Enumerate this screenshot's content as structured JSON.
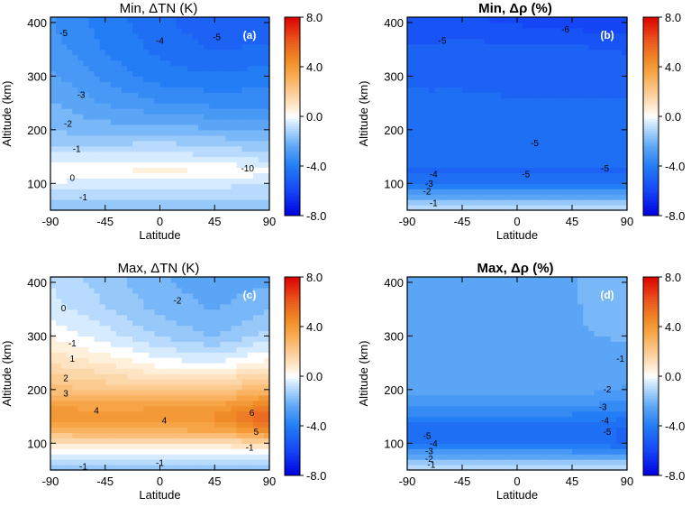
{
  "figure": {
    "colorbar_ticks": [
      "8.0",
      "4.0",
      "0.0",
      "-4.0",
      "-8.0"
    ]
  },
  "chart_data": [
    {
      "type": "heatmap",
      "title": "Min, ΔTN (K)",
      "panel_label": "(a)",
      "xlabel": "Latitude",
      "ylabel": "Altitude (km)",
      "xlim": [
        -90,
        90
      ],
      "ylim": [
        50,
        410
      ],
      "x_ticks": [
        "-90",
        "-45",
        "0",
        "45",
        "90"
      ],
      "y_ticks": [
        "100",
        "200",
        "300",
        "400"
      ],
      "colorbar_range": [
        -8,
        8
      ],
      "grid": false,
      "lat": [
        -90,
        -45,
        0,
        45,
        90
      ],
      "alt": [
        60,
        80,
        100,
        125,
        150,
        175,
        200,
        250,
        300,
        350,
        400
      ],
      "z": [
        [
          -1.5,
          -1.5,
          -1.5,
          -1.5,
          -1.5
        ],
        [
          -1,
          -1,
          -1,
          -1,
          -1
        ],
        [
          -0.3,
          -0.5,
          -0.5,
          -0.6,
          -0.8
        ],
        [
          0.2,
          0.2,
          0.3,
          0.2,
          0
        ],
        [
          -0.6,
          -0.6,
          -0.5,
          -0.7,
          -1
        ],
        [
          -1.3,
          -1.3,
          -1.2,
          -1.4,
          -1.6
        ],
        [
          -1.8,
          -2,
          -2,
          -2.2,
          -2.4
        ],
        [
          -2.2,
          -2.8,
          -3.2,
          -3.4,
          -3.4
        ],
        [
          -2.6,
          -3.4,
          -4,
          -4.2,
          -4
        ],
        [
          -3,
          -3.8,
          -4.4,
          -4.8,
          -4.6
        ],
        [
          -3.2,
          -4,
          -4.6,
          -5.1,
          -5.2
        ]
      ],
      "contour_labels": [
        "-5",
        "-4",
        "-5",
        "-3",
        "-2",
        "-1",
        "0",
        "-1",
        "-10"
      ]
    },
    {
      "type": "heatmap",
      "title": "Min, Δρ (%)",
      "panel_label": "(b)",
      "xlabel": "Latitude",
      "ylabel": "Altitude (km)",
      "xlim": [
        -90,
        90
      ],
      "ylim": [
        50,
        410
      ],
      "x_ticks": [
        "-90",
        "-45",
        "0",
        "45",
        "90"
      ],
      "y_ticks": [
        "100",
        "200",
        "300",
        "400"
      ],
      "colorbar_range": [
        -8,
        8
      ],
      "grid": false,
      "lat": [
        -90,
        -45,
        0,
        45,
        90
      ],
      "alt": [
        60,
        80,
        100,
        125,
        150,
        175,
        200,
        250,
        300,
        350,
        400
      ],
      "z": [
        [
          -1,
          -1,
          -1,
          -1,
          -1
        ],
        [
          -2.8,
          -2.8,
          -2.8,
          -2.8,
          -2.8
        ],
        [
          -4.5,
          -4.5,
          -4.5,
          -4.5,
          -4.5
        ],
        [
          -4.8,
          -4.8,
          -4.8,
          -4.8,
          -4.8
        ],
        [
          -4.6,
          -4.6,
          -4.6,
          -4.6,
          -4.6
        ],
        [
          -4.6,
          -4.6,
          -4.6,
          -4.6,
          -4.6
        ],
        [
          -4.6,
          -4.6,
          -4.6,
          -4.6,
          -4.6
        ],
        [
          -4.7,
          -4.7,
          -4.7,
          -4.7,
          -4.7
        ],
        [
          -4.8,
          -4.8,
          -4.9,
          -5,
          -5
        ],
        [
          -5.2,
          -5,
          -5.1,
          -5.1,
          -5.3
        ],
        [
          -5.6,
          -5.7,
          -5.8,
          -6,
          -6.1
        ]
      ],
      "contour_labels": [
        "-6",
        "-5",
        "-5",
        "-5",
        "-5",
        "-4",
        "-3",
        "-2",
        "-1"
      ]
    },
    {
      "type": "heatmap",
      "title": "Max, ΔTN (K)",
      "panel_label": "(c)",
      "xlabel": "Latitude",
      "ylabel": "Altitude (km)",
      "xlim": [
        -90,
        90
      ],
      "ylim": [
        50,
        410
      ],
      "x_ticks": [
        "-90",
        "-45",
        "0",
        "45",
        "90"
      ],
      "y_ticks": [
        "100",
        "200",
        "300",
        "400"
      ],
      "colorbar_range": [
        -8,
        8
      ],
      "grid": false,
      "lat": [
        -90,
        -45,
        0,
        45,
        90
      ],
      "alt": [
        60,
        80,
        100,
        125,
        150,
        175,
        200,
        250,
        300,
        350,
        400
      ],
      "z": [
        [
          -1.5,
          -1.5,
          -1.5,
          -1.5,
          -1.5
        ],
        [
          -0.5,
          -0.5,
          -0.5,
          -0.5,
          -0.5
        ],
        [
          1,
          1,
          1,
          1,
          1.5
        ],
        [
          3,
          3.2,
          3.2,
          3.3,
          4.5
        ],
        [
          4.2,
          4.2,
          4.3,
          4.4,
          6
        ],
        [
          3.5,
          3.4,
          3.4,
          3.5,
          4.5
        ],
        [
          2.5,
          2.2,
          2,
          2,
          3
        ],
        [
          1.2,
          0.7,
          0,
          -0.3,
          0.5
        ],
        [
          0.2,
          -0.5,
          -1.3,
          -1.8,
          -1
        ],
        [
          -0.5,
          -1.2,
          -1.9,
          -2.3,
          -1.8
        ],
        [
          -0.8,
          -1.5,
          -2.2,
          -2.5,
          -2.3
        ]
      ],
      "contour_labels": [
        "-1",
        "-2",
        "0",
        "-1",
        "1",
        "2",
        "3",
        "4",
        "4",
        "6",
        "5",
        "-1",
        "-1"
      ]
    },
    {
      "type": "heatmap",
      "title": "Max, Δρ (%)",
      "panel_label": "(d)",
      "xlabel": "Latitude",
      "ylabel": "Altitude (km)",
      "xlim": [
        -90,
        90
      ],
      "ylim": [
        50,
        410
      ],
      "x_ticks": [
        "-90",
        "-45",
        "0",
        "45",
        "90"
      ],
      "y_ticks": [
        "100",
        "200",
        "300",
        "400"
      ],
      "colorbar_range": [
        -8,
        8
      ],
      "grid": false,
      "lat": [
        -90,
        -45,
        0,
        45,
        90
      ],
      "alt": [
        60,
        80,
        100,
        125,
        150,
        175,
        200,
        250,
        300,
        350,
        400
      ],
      "z": [
        [
          -1,
          -1,
          -1,
          -1,
          -1
        ],
        [
          -2.8,
          -2.8,
          -2.8,
          -2.8,
          -2.8
        ],
        [
          -4.5,
          -4.5,
          -4.5,
          -4.6,
          -4.8
        ],
        [
          -4.6,
          -4.6,
          -4.6,
          -4.6,
          -4.8
        ],
        [
          -3.8,
          -3.8,
          -3.8,
          -3.9,
          -4.2
        ],
        [
          -3,
          -3,
          -3,
          -3.1,
          -3.4
        ],
        [
          -2.4,
          -2.4,
          -2.4,
          -2.5,
          -2.8
        ],
        [
          -2.3,
          -2.3,
          -2.3,
          -2.3,
          -2.5
        ],
        [
          -2.3,
          -2.3,
          -2.3,
          -2.3,
          -2.2
        ],
        [
          -2.3,
          -2.3,
          -2.3,
          -2.3,
          -2
        ],
        [
          -2.3,
          -2.3,
          -2.3,
          -2.3,
          -1.8
        ]
      ],
      "contour_labels": [
        "-1",
        "-2",
        "-3",
        "-4",
        "-5",
        "-5",
        "-4",
        "-3",
        "-2",
        "-1"
      ]
    }
  ]
}
